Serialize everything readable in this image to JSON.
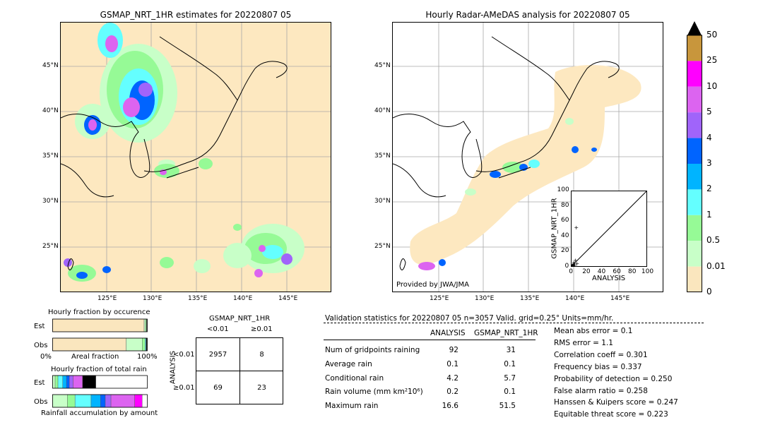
{
  "left_map": {
    "title": "GSMAP_NRT_1HR estimates for 20220807 05",
    "lat_labels": [
      "45°N",
      "40°N",
      "35°N",
      "30°N",
      "25°N"
    ],
    "lon_labels": [
      "125°E",
      "130°E",
      "135°E",
      "140°E",
      "145°E"
    ]
  },
  "right_map": {
    "title": "Hourly Radar-AMeDAS analysis for 20220807 05",
    "lat_labels": [
      "45°N",
      "40°N",
      "35°N",
      "30°N",
      "25°N"
    ],
    "lon_labels": [
      "125°E",
      "130°E",
      "135°E",
      "140°E",
      "145°E"
    ],
    "credit": "Provided by JWA/JMA"
  },
  "colorbar": {
    "labels": [
      "50",
      "25",
      "10",
      "5",
      "4",
      "3",
      "2",
      "1",
      "0.5",
      "0.01",
      "0"
    ],
    "colors": [
      "#c8963c",
      "#ff00ff",
      "#dc64f0",
      "#a064fa",
      "#0064ff",
      "#00b4ff",
      "#64ffff",
      "#96fa96",
      "#c8ffc8",
      "#fae6be"
    ]
  },
  "chart_data": [
    {
      "type": "scatter",
      "title": "",
      "xlabel": "ANALYSIS",
      "ylabel": "GSMAP_NRT_1HR",
      "xlim": [
        0,
        100
      ],
      "ylim": [
        0,
        100
      ],
      "x_ticks": [
        "0",
        "20",
        "40",
        "60",
        "80",
        "100"
      ],
      "y_ticks": [
        "0",
        "20",
        "40",
        "60",
        "80",
        "100"
      ],
      "points": [
        [
          6,
          52
        ],
        [
          5,
          8
        ],
        [
          3,
          5
        ],
        [
          2,
          3
        ],
        [
          1,
          2
        ],
        [
          4,
          2
        ],
        [
          2,
          1
        ],
        [
          1,
          1
        ],
        [
          7,
          4
        ],
        [
          3,
          2
        ]
      ]
    },
    {
      "type": "bar",
      "title": "Hourly fraction by occurence",
      "orientation": "horizontal",
      "categories": [
        "Est",
        "Obs"
      ],
      "xlabel": "Areal fraction",
      "x_ticks": [
        "0%",
        "100%"
      ],
      "series": [
        {
          "name": "Est",
          "segments": [
            {
              "color": "#fae6be",
              "value": 0.97
            },
            {
              "color": "#c8ffc8",
              "value": 0.015
            },
            {
              "color": "#96fa96",
              "value": 0.01
            },
            {
              "color": "#000000",
              "value": 0.005
            }
          ]
        },
        {
          "name": "Obs",
          "segments": [
            {
              "color": "#fae6be",
              "value": 0.78
            },
            {
              "color": "#c8ffc8",
              "value": 0.17
            },
            {
              "color": "#96fa96",
              "value": 0.03
            },
            {
              "color": "#64ffff",
              "value": 0.01
            },
            {
              "color": "#000000",
              "value": 0.01
            }
          ]
        }
      ]
    },
    {
      "type": "bar",
      "title": "Hourly fraction of total rain",
      "orientation": "horizontal",
      "categories": [
        "Est",
        "Obs"
      ],
      "xlabel": "Rainfall accumulation by amount",
      "series": [
        {
          "name": "Est",
          "segments": [
            {
              "color": "#c8ffc8",
              "value": 0.03
            },
            {
              "color": "#96fa96",
              "value": 0.03
            },
            {
              "color": "#64ffff",
              "value": 0.05
            },
            {
              "color": "#00b4ff",
              "value": 0.04
            },
            {
              "color": "#0064ff",
              "value": 0.03
            },
            {
              "color": "#a064fa",
              "value": 0.04
            },
            {
              "color": "#dc64f0",
              "value": 0.1
            },
            {
              "color": "#000000",
              "value": 0.14
            }
          ]
        },
        {
          "name": "Obs",
          "segments": [
            {
              "color": "#c8ffc8",
              "value": 0.16
            },
            {
              "color": "#96fa96",
              "value": 0.08
            },
            {
              "color": "#64ffff",
              "value": 0.17
            },
            {
              "color": "#00b4ff",
              "value": 0.1
            },
            {
              "color": "#0064ff",
              "value": 0.05
            },
            {
              "color": "#a064fa",
              "value": 0.06
            },
            {
              "color": "#dc64f0",
              "value": 0.25
            },
            {
              "color": "#ff00ff",
              "value": 0.08
            }
          ]
        }
      ]
    },
    {
      "type": "table",
      "title": "GSMAP_NRT_1HR",
      "col_headers": [
        "<0.01",
        "≥0.01"
      ],
      "row_axis_label": "ANALYSIS",
      "row_headers": [
        "<0.01",
        "≥0.01"
      ],
      "cells": [
        [
          "2957",
          "8"
        ],
        [
          "69",
          "23"
        ]
      ]
    }
  ],
  "validation": {
    "header": "Validation statistics for 20220807 05  n=3057 Valid. grid=0.25° Units=mm/hr.",
    "col_analysis": "ANALYSIS",
    "col_gsmap": "GSMAP_NRT_1HR",
    "rows": [
      {
        "label": "Num of gridpoints raining",
        "analysis": "92",
        "gsmap": "31"
      },
      {
        "label": "Average rain",
        "analysis": "0.1",
        "gsmap": "0.1"
      },
      {
        "label": "Conditional rain",
        "analysis": "4.2",
        "gsmap": "5.7"
      },
      {
        "label": "Rain volume (mm km²10⁶)",
        "analysis": "0.2",
        "gsmap": "0.1"
      },
      {
        "label": "Maximum rain",
        "analysis": "16.6",
        "gsmap": "51.5"
      }
    ],
    "scores": [
      "Mean abs error =    0.1",
      "RMS error =    1.1",
      "Correlation coeff =  0.301",
      "Frequency bias =  0.337",
      "Probability of detection =  0.250",
      "False alarm ratio =  0.258",
      "Hanssen & Kuipers score =  0.247",
      "Equitable threat score =  0.223"
    ]
  }
}
